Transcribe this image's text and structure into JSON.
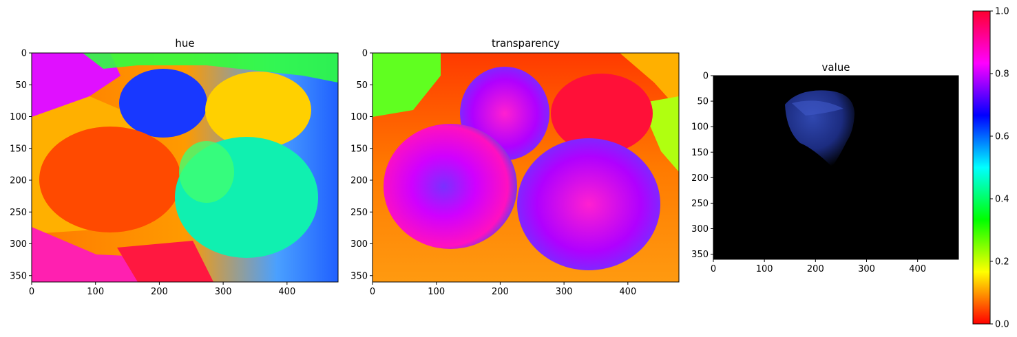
{
  "chart_data": [
    {
      "type": "heatmap",
      "title": "hue",
      "xticks": [
        0,
        100,
        200,
        300,
        400
      ],
      "yticks": [
        0,
        50,
        100,
        150,
        200,
        250,
        300,
        350
      ],
      "xlim": [
        0,
        480
      ],
      "ylim": [
        360,
        0
      ],
      "colormap": "hsv",
      "regions": [
        {
          "name": "top-left background",
          "value": 0.85
        },
        {
          "name": "left floor",
          "value": 0.08
        },
        {
          "name": "orange bag",
          "value": 0.05
        },
        {
          "name": "blue bag",
          "value": 0.64
        },
        {
          "name": "yellow bag",
          "value": 0.16
        },
        {
          "name": "cyan-green bag",
          "value": 0.48
        },
        {
          "name": "right background",
          "value": 0.58
        },
        {
          "name": "bottom-left floor",
          "value": 0.9
        }
      ]
    },
    {
      "type": "heatmap",
      "title": "transparency",
      "xticks": [
        0,
        100,
        200,
        300,
        400
      ],
      "yticks": [
        0,
        50,
        100,
        150,
        200,
        250,
        300,
        350
      ],
      "xlim": [
        0,
        480
      ],
      "ylim": [
        360,
        0
      ],
      "colormap": "hsv",
      "regions": [
        {
          "name": "background",
          "value": 0.08
        },
        {
          "name": "upper-left floor",
          "value": 0.3
        },
        {
          "name": "top-left bag",
          "value": 0.85
        },
        {
          "name": "top-right bag",
          "value": 0.98
        },
        {
          "name": "bottom-left bag",
          "value": 0.8
        },
        {
          "name": "bottom-right bag",
          "value": 0.82
        }
      ]
    },
    {
      "type": "heatmap",
      "title": "value",
      "xticks": [
        0,
        100,
        200,
        300,
        400
      ],
      "yticks": [
        0,
        50,
        100,
        150,
        200,
        250,
        300,
        350
      ],
      "xlim": [
        0,
        480
      ],
      "ylim": [
        360,
        0
      ],
      "colormap": "rgb-masked",
      "regions": [
        {
          "name": "masked background",
          "value": 0.0
        },
        {
          "name": "blue bag",
          "value": 0.64
        }
      ]
    }
  ],
  "colorbar": {
    "colormap": "hsv",
    "range": [
      0.0,
      1.0
    ],
    "ticks": [
      "0.0",
      "0.2",
      "0.4",
      "0.6",
      "0.8",
      "1.0"
    ]
  }
}
